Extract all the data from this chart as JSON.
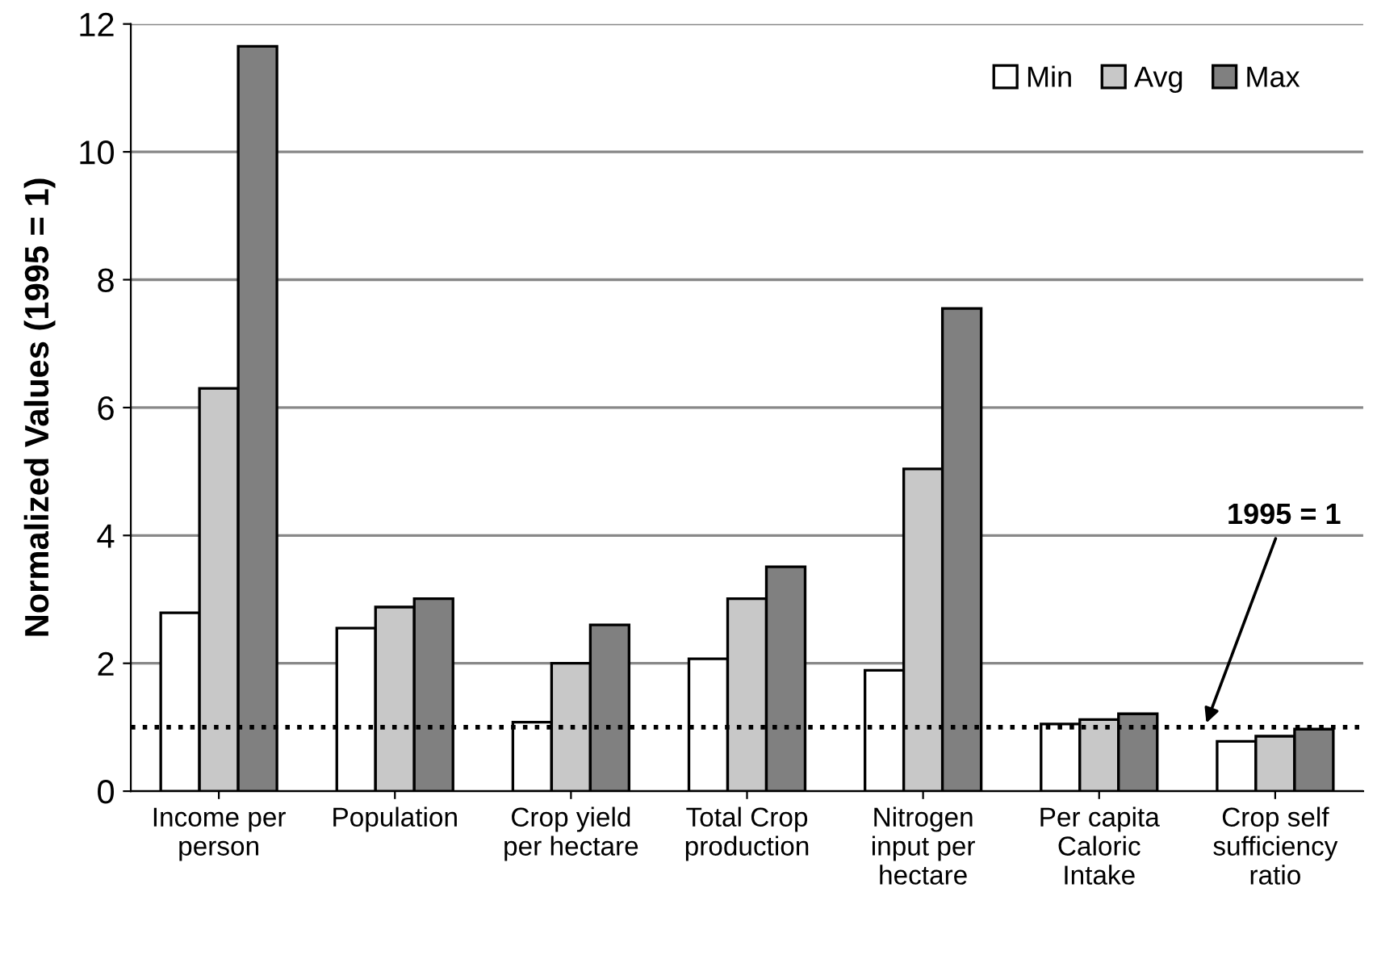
{
  "chart_data": {
    "type": "bar",
    "ylabel": "Normalized Values (1995 = 1)",
    "categories": [
      "Income per\nperson",
      "Population",
      "Crop yield\nper hectare",
      "Total Crop\nproduction",
      "Nitrogen\ninput per\nhectare",
      "Per capita\nCaloric\nIntake",
      "Crop self\nsufficiency\nratio"
    ],
    "series": [
      {
        "name": "Min",
        "color": "#ffffff",
        "values": [
          2.79,
          2.55,
          1.08,
          2.07,
          1.89,
          1.05,
          0.78
        ]
      },
      {
        "name": "Avg",
        "color": "#c8c8c8",
        "values": [
          6.3,
          2.88,
          2.0,
          3.01,
          5.04,
          1.12,
          0.86
        ]
      },
      {
        "name": "Max",
        "color": "#808080",
        "values": [
          11.65,
          3.01,
          2.6,
          3.51,
          7.55,
          1.21,
          0.97
        ]
      }
    ],
    "ylim": [
      0,
      12
    ],
    "yticks": [
      0,
      2,
      4,
      6,
      8,
      10,
      12
    ],
    "grid": "y",
    "legend": "top right",
    "ref_lines": [
      {
        "axis": "y",
        "value": 1,
        "label": "1995 = 1",
        "line_style": "dotted",
        "color": "#000000"
      }
    ]
  }
}
